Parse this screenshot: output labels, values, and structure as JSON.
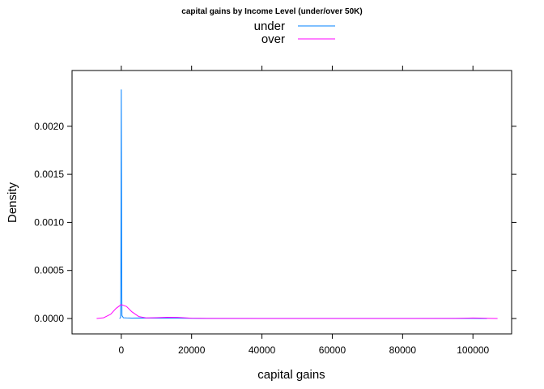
{
  "chart_data": {
    "type": "line",
    "title": "capital gains by Income Level (under/over 50K)",
    "xlabel": "capital gains",
    "ylabel": "Density",
    "xlim": [
      -14000,
      111000
    ],
    "ylim": [
      -0.00016,
      0.00258
    ],
    "x_ticks": [
      0,
      20000,
      40000,
      60000,
      80000,
      100000
    ],
    "x_tick_labels": [
      "0",
      "20000",
      "40000",
      "60000",
      "80000",
      "100000"
    ],
    "y_ticks": [
      0.0,
      0.0005,
      0.001,
      0.0015,
      0.002
    ],
    "y_tick_labels": [
      "0.0000",
      "0.0005",
      "0.0010",
      "0.0015",
      "0.0020"
    ],
    "grid": false,
    "legend_position": "top",
    "series": [
      {
        "name": "under",
        "color": "#0080ff",
        "x": [
          -500,
          -200,
          -120,
          -50,
          0,
          50,
          120,
          200,
          600,
          1500,
          3000,
          5000,
          8000,
          12000,
          16000,
          20000,
          30000,
          50000,
          70000,
          90000,
          100000,
          104000
        ],
        "y": [
          0.0,
          1e-05,
          0.0004,
          0.0016,
          0.00238,
          0.0016,
          0.0004,
          3e-05,
          8e-06,
          6e-06,
          4e-06,
          5e-06,
          4e-06,
          3e-06,
          3e-06,
          2e-06,
          1e-06,
          1e-06,
          1e-06,
          1e-06,
          1e-06,
          0.0
        ]
      },
      {
        "name": "over",
        "color": "#ff00ff",
        "x": [
          -7000,
          -5000,
          -3000,
          -1500,
          0,
          1500,
          3000,
          5000,
          7000,
          10000,
          13000,
          16000,
          18000,
          20000,
          25000,
          40000,
          60000,
          80000,
          95000,
          100000,
          102000,
          105000,
          107000
        ],
        "y": [
          0.0,
          8e-06,
          4.5e-05,
          0.000105,
          0.000145,
          0.000125,
          7e-05,
          2e-05,
          7e-06,
          9e-06,
          1.3e-05,
          1.2e-05,
          8e-06,
          3e-06,
          1e-06,
          5e-07,
          5e-07,
          5e-07,
          1.5e-06,
          5e-06,
          4e-06,
          1e-06,
          0.0
        ]
      }
    ]
  }
}
